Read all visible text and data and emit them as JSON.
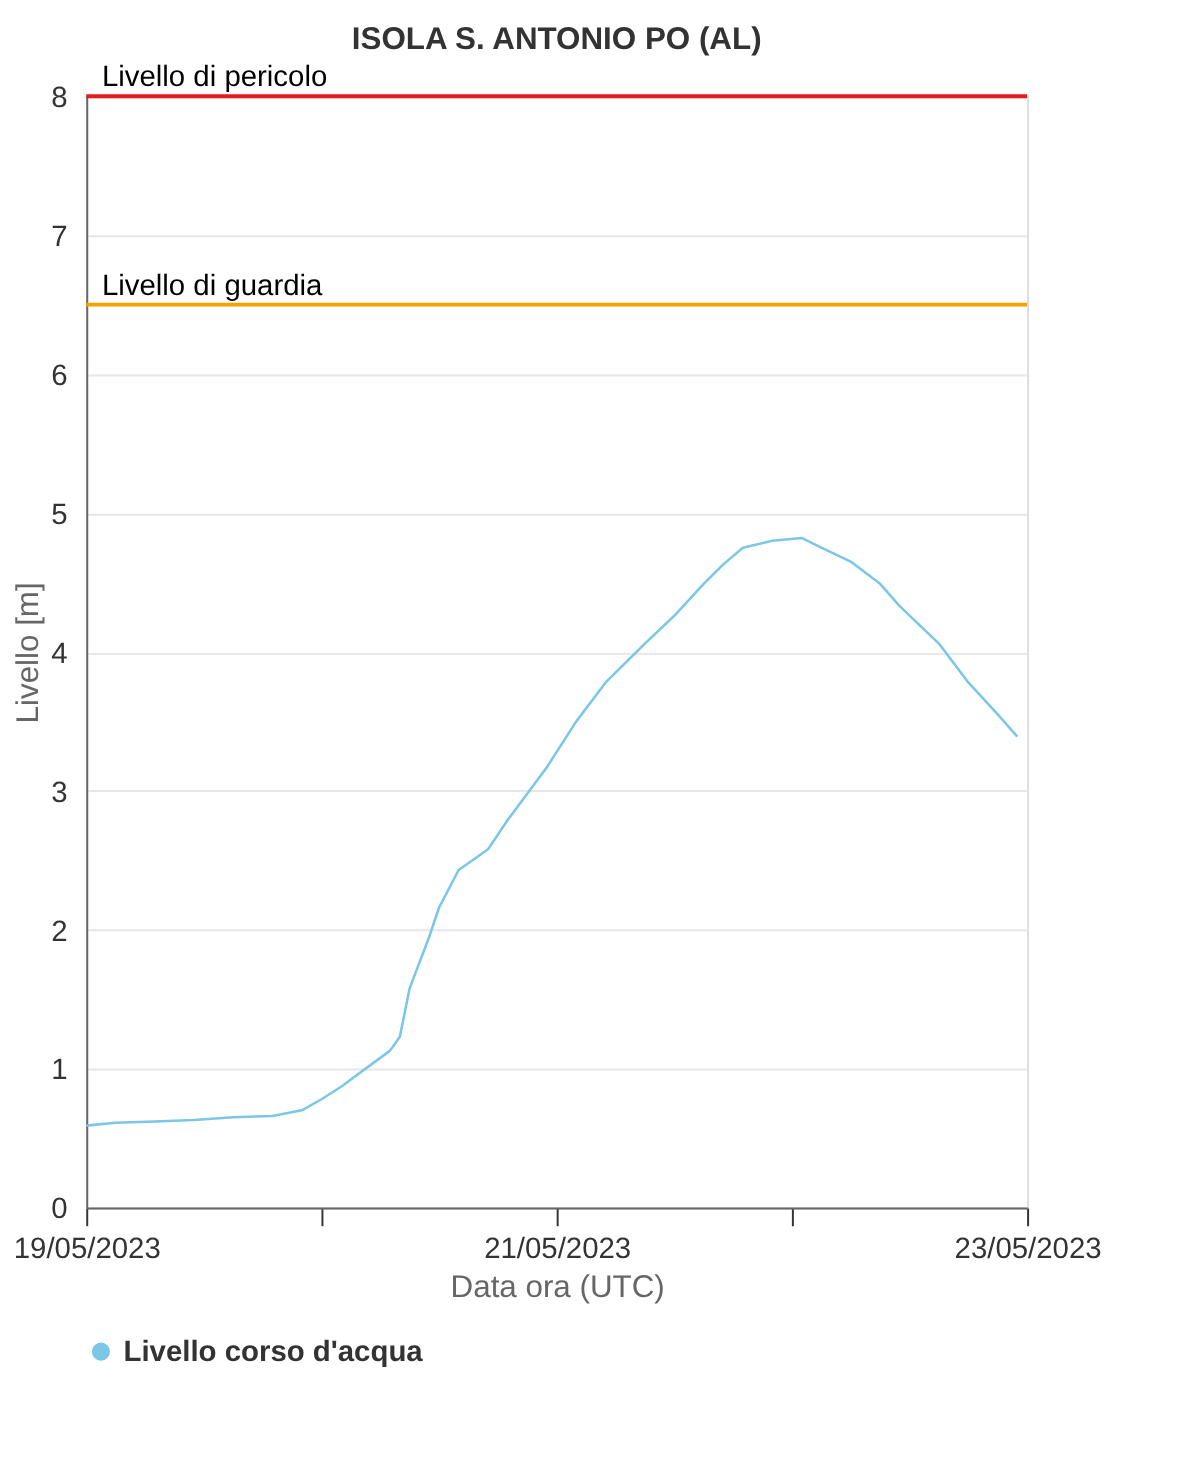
{
  "chart_data": {
    "type": "line",
    "title": "ISOLA S. ANTONIO PO (AL)",
    "xlabel": "Data ora (UTC)",
    "ylabel": "Livello [m]",
    "x": [
      "2023-05-19T00:00",
      "2023-05-19T03:00",
      "2023-05-19T07:00",
      "2023-05-19T11:00",
      "2023-05-19T15:00",
      "2023-05-19T19:00",
      "2023-05-19T22:00",
      "2023-05-20T00:00",
      "2023-05-20T02:00",
      "2023-05-20T07:00",
      "2023-05-20T08:00",
      "2023-05-20T09:00",
      "2023-05-20T11:00",
      "2023-05-20T12:00",
      "2023-05-20T14:00",
      "2023-05-20T17:00",
      "2023-05-20T19:00",
      "2023-05-20T23:00",
      "2023-05-21T02:00",
      "2023-05-21T05:00",
      "2023-05-21T09:00",
      "2023-05-21T12:00",
      "2023-05-21T15:00",
      "2023-05-21T17:00",
      "2023-05-21T19:00",
      "2023-05-21T22:00",
      "2023-05-22T01:00",
      "2023-05-22T03:00",
      "2023-05-22T06:00",
      "2023-05-22T09:00",
      "2023-05-22T11:00",
      "2023-05-22T15:00",
      "2023-05-22T18:00",
      "2023-05-22T21:00",
      "2023-05-22T23:00"
    ],
    "series": [
      {
        "name": "Livello corso d'acqua",
        "color": "#7cc6e8",
        "values": [
          0.59,
          0.61,
          0.62,
          0.63,
          0.65,
          0.66,
          0.7,
          0.78,
          0.87,
          1.13,
          1.23,
          1.58,
          1.95,
          2.16,
          2.43,
          2.58,
          2.79,
          3.17,
          3.5,
          3.78,
          4.06,
          4.26,
          4.49,
          4.63,
          4.75,
          4.8,
          4.82,
          4.75,
          4.65,
          4.49,
          4.33,
          4.06,
          3.78,
          3.55,
          3.39
        ]
      }
    ],
    "xlim": [
      "2023-05-19",
      "2023-05-23"
    ],
    "xticks": [
      {
        "value": "2023-05-19",
        "label": "19/05/2023"
      },
      {
        "value": "2023-05-20",
        "label": null
      },
      {
        "value": "2023-05-21",
        "label": "21/05/2023"
      },
      {
        "value": "2023-05-22",
        "label": null
      },
      {
        "value": "2023-05-23",
        "label": "23/05/2023"
      }
    ],
    "ylim": [
      0,
      8
    ],
    "yticks": [
      0,
      1,
      2,
      3,
      4,
      5,
      6,
      7,
      8
    ],
    "ref_lines": [
      {
        "axis": "y",
        "value": 8,
        "label": "Livello di pericolo",
        "color": "#e41a1c"
      },
      {
        "axis": "y",
        "value": 6.5,
        "label": "Livello di guardia",
        "color": "#f5a200"
      }
    ],
    "grid": "y",
    "legend": "bottom",
    "marker": "none",
    "line_style": "solid"
  }
}
